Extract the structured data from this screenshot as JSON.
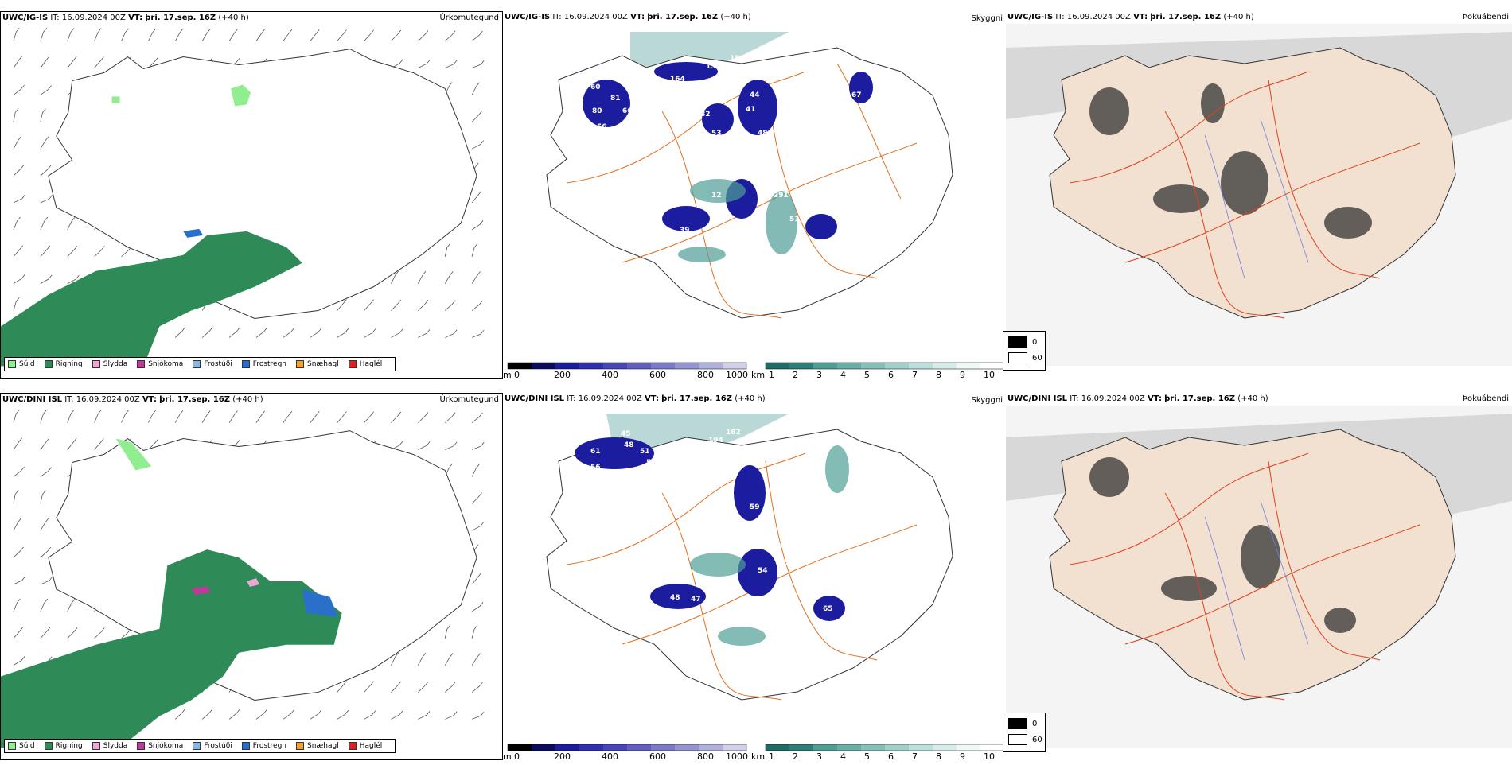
{
  "panels": {
    "row1": {
      "left": {
        "model": "UWC/IG-IS",
        "it_label": "IT:",
        "it": "16.09.2024 00Z",
        "vt_label": "VT:",
        "vt": "þri. 17.sep. 16Z",
        "lead": "(+40 h)",
        "corner": "Úrkomutegund"
      },
      "mid": {
        "model": "UWC/IG-IS",
        "it_label": "IT:",
        "it": "16.09.2024 00Z",
        "vt_label": "VT:",
        "vt": "þri. 17.sep. 16Z",
        "lead": "(+40 h)",
        "corner": "Skyggni"
      },
      "right": {
        "model": "UWC/IG-IS",
        "it_label": "IT:",
        "it": "16.09.2024 00Z",
        "vt_label": "VT:",
        "vt": "þri. 17.sep. 16Z",
        "lead": "(+40 h)",
        "corner": "Þokuábendi"
      },
      "cloud_labels": [
        "47",
        "50",
        "60",
        "81",
        "80",
        "66",
        "56",
        "164",
        "157",
        "152",
        "44",
        "41",
        "48",
        "82",
        "53",
        "48",
        "67",
        "38",
        "12",
        "89",
        "39",
        "61",
        "72",
        "51",
        "291",
        "92",
        "70",
        "62",
        "94",
        "68"
      ]
    },
    "row2": {
      "left": {
        "model": "UWC/DINI ISL",
        "it_label": "IT:",
        "it": "16.09.2024 00Z",
        "vt_label": "VT:",
        "vt": "þri. 17.sep. 16Z",
        "lead": "(+40 h)",
        "corner": "Úrkomutegund"
      },
      "mid": {
        "model": "UWC/DINI ISL",
        "it_label": "IT:",
        "it": "16.09.2024 00Z",
        "vt_label": "VT:",
        "vt": "þri. 17.sep. 16Z",
        "lead": "(+40 h)",
        "corner": "Skyggni"
      },
      "right": {
        "model": "UWC/DINI ISL",
        "it_label": "IT:",
        "it": "16.09.2024 00Z",
        "vt_label": "VT:",
        "vt": "þri. 17.sep. 16Z",
        "lead": "(+40 h)",
        "corner": "Þokuábendi"
      },
      "cloud_labels": [
        "45",
        "48",
        "51",
        "55",
        "120",
        "194",
        "182",
        "61",
        "56",
        "52",
        "85",
        "59",
        "87",
        "54",
        "57",
        "48",
        "47",
        "49",
        "171",
        "65",
        "95",
        "102",
        "65",
        "62",
        "65"
      ]
    }
  },
  "precip_legend": [
    {
      "label": "Súld",
      "color": "#90ee90"
    },
    {
      "label": "Rigning",
      "color": "#2e8b57"
    },
    {
      "label": "Slydda",
      "color": "#f3a6d3"
    },
    {
      "label": "Snjókoma",
      "color": "#c0399a"
    },
    {
      "label": "Frostúði",
      "color": "#87b6e8"
    },
    {
      "label": "Frostregn",
      "color": "#2a6fc9"
    },
    {
      "label": "Snæhagl",
      "color": "#f0a030"
    },
    {
      "label": "Haglél",
      "color": "#e02020"
    }
  ],
  "cloud_base_scale": {
    "unit": "m",
    "ticks": [
      "0",
      "200",
      "400",
      "600",
      "800",
      "1000"
    ]
  },
  "visibility_scale": {
    "unit": "km",
    "ticks": [
      "1",
      "2",
      "3",
      "4",
      "5",
      "6",
      "7",
      "8",
      "9",
      "10"
    ]
  },
  "fog_legend": {
    "black_value": "0",
    "white_value": "60"
  },
  "colors": {
    "rain": "#2e8b57",
    "drizzle": "#90ee90",
    "cloud_low": "#1c1c9e",
    "visibility": "#4f9e96",
    "roads": "#e07020",
    "land_fog": "#f2e0d0"
  }
}
